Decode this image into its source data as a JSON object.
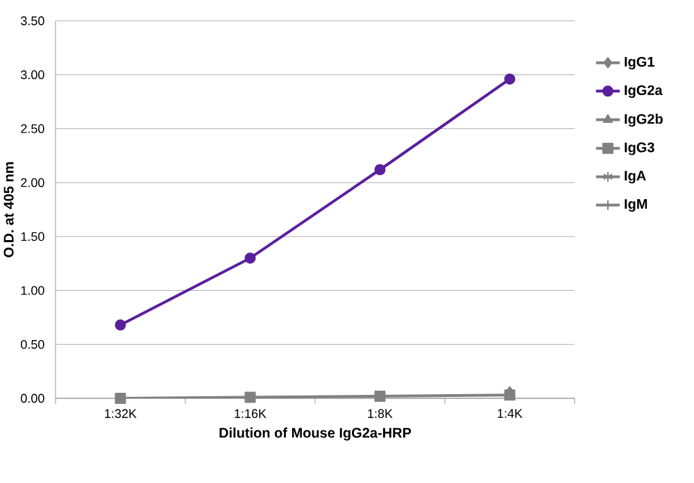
{
  "chart_data": {
    "type": "line",
    "xlabel": "Dilution of Mouse IgG2a-HRP",
    "ylabel": "O.D. at 405 nm",
    "categories": [
      "1:32K",
      "1:16K",
      "1:8K",
      "1:4K"
    ],
    "series": [
      {
        "name": "IgG1",
        "color": "#808080",
        "marker": "diamond",
        "values": [
          null,
          null,
          null,
          0.06
        ]
      },
      {
        "name": "IgG2a",
        "color": "#5a1f9c",
        "marker": "circle",
        "values": [
          0.68,
          1.3,
          2.12,
          2.96
        ]
      },
      {
        "name": "IgG2b",
        "color": "#808080",
        "marker": "triangle",
        "values": [
          null,
          null,
          null,
          null
        ]
      },
      {
        "name": "IgG3",
        "color": "#808080",
        "marker": "square",
        "values": [
          0.0,
          0.01,
          0.02,
          0.03
        ]
      },
      {
        "name": "IgA",
        "color": "#808080",
        "marker": "star",
        "values": [
          null,
          null,
          null,
          null
        ]
      },
      {
        "name": "IgM",
        "color": "#808080",
        "marker": "cross",
        "values": [
          null,
          null,
          null,
          null
        ]
      }
    ],
    "ylim": [
      0,
      3.5
    ],
    "yticks": [
      {
        "value": 0,
        "label": "0.00"
      },
      {
        "value": 0.5,
        "label": "0.50"
      },
      {
        "value": 1,
        "label": "1.00"
      },
      {
        "value": 1.5,
        "label": "1.50"
      },
      {
        "value": 2,
        "label": "2.00"
      },
      {
        "value": 2.5,
        "label": "2.50"
      },
      {
        "value": 3,
        "label": "3.00"
      },
      {
        "value": 3.5,
        "label": "3.50"
      }
    ],
    "grid": "y",
    "legend": "right",
    "line_style": "solid"
  }
}
